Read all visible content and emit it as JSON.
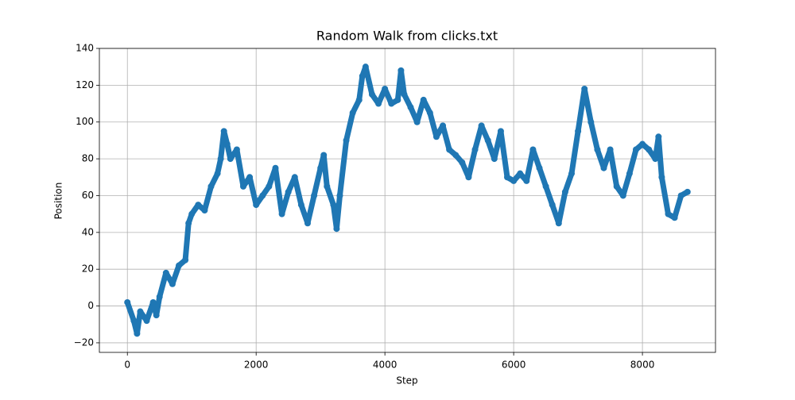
{
  "chart_data": {
    "type": "scatter",
    "title": "Random Walk from clicks.txt",
    "x_label": "Step",
    "y_label": "Position",
    "x": [
      0,
      100,
      150,
      200,
      300,
      400,
      450,
      500,
      600,
      700,
      800,
      900,
      950,
      1000,
      1100,
      1200,
      1300,
      1400,
      1450,
      1500,
      1550,
      1600,
      1700,
      1800,
      1900,
      2000,
      2100,
      2200,
      2300,
      2400,
      2500,
      2600,
      2700,
      2800,
      2900,
      3000,
      3050,
      3100,
      3200,
      3250,
      3300,
      3400,
      3500,
      3600,
      3650,
      3700,
      3800,
      3900,
      4000,
      4100,
      4200,
      4250,
      4300,
      4400,
      4500,
      4600,
      4700,
      4800,
      4900,
      5000,
      5100,
      5200,
      5300,
      5400,
      5500,
      5600,
      5700,
      5800,
      5900,
      6000,
      6100,
      6200,
      6300,
      6400,
      6500,
      6600,
      6700,
      6800,
      6900,
      7000,
      7100,
      7200,
      7300,
      7400,
      7500,
      7600,
      7700,
      7800,
      7900,
      8000,
      8100,
      8200,
      8250,
      8300,
      8400,
      8500,
      8600,
      8700
    ],
    "values": [
      2,
      -8,
      -15,
      -3,
      -8,
      2,
      -5,
      5,
      18,
      12,
      22,
      25,
      45,
      50,
      55,
      52,
      65,
      72,
      80,
      95,
      88,
      80,
      85,
      65,
      70,
      55,
      60,
      65,
      75,
      50,
      62,
      70,
      55,
      45,
      60,
      75,
      82,
      65,
      55,
      42,
      60,
      90,
      105,
      112,
      125,
      130,
      115,
      110,
      118,
      110,
      112,
      128,
      115,
      108,
      100,
      112,
      105,
      92,
      98,
      85,
      82,
      78,
      70,
      85,
      98,
      90,
      80,
      95,
      70,
      68,
      72,
      68,
      85,
      75,
      65,
      55,
      45,
      62,
      72,
      95,
      118,
      100,
      85,
      75,
      85,
      65,
      60,
      72,
      85,
      88,
      85,
      80,
      92,
      70,
      50,
      48,
      60,
      62
    ],
    "color": "#1f77b4",
    "xlim": [
      -435,
      9135
    ],
    "xticks": [
      0,
      2000,
      4000,
      6000,
      8000
    ],
    "ylim": [
      -25.2,
      140
    ],
    "yticks": [
      {
        "value": -20,
        "label": "−20"
      },
      0,
      20,
      40,
      60,
      80,
      100,
      120,
      140
    ],
    "grid": true
  }
}
